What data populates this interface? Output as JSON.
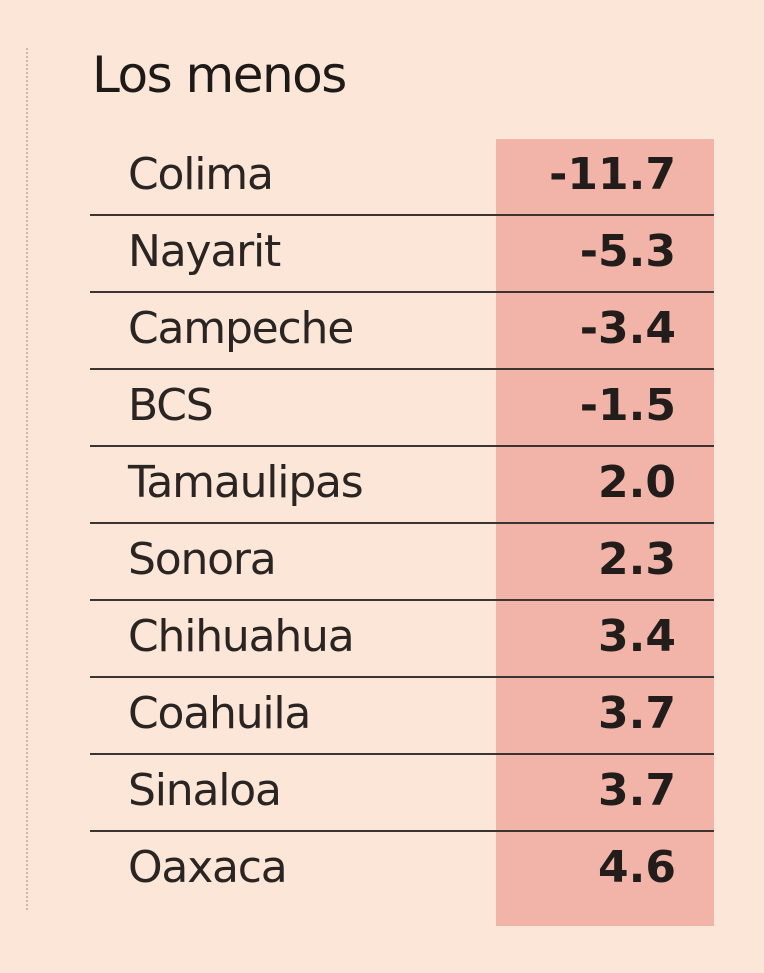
{
  "chart_data": {
    "type": "table",
    "title": "Los menos",
    "rows": [
      {
        "state": "Colima",
        "value": "-11.7"
      },
      {
        "state": "Nayarit",
        "value": "-5.3"
      },
      {
        "state": "Campeche",
        "value": "-3.4"
      },
      {
        "state": "BCS",
        "value": "-1.5"
      },
      {
        "state": "Tamaulipas",
        "value": "2.0"
      },
      {
        "state": "Sonora",
        "value": "2.3"
      },
      {
        "state": "Chihuahua",
        "value": "3.4"
      },
      {
        "state": "Coahuila",
        "value": "3.7"
      },
      {
        "state": "Sinaloa",
        "value": "3.7"
      },
      {
        "state": "Oaxaca",
        "value": "4.6"
      }
    ]
  }
}
